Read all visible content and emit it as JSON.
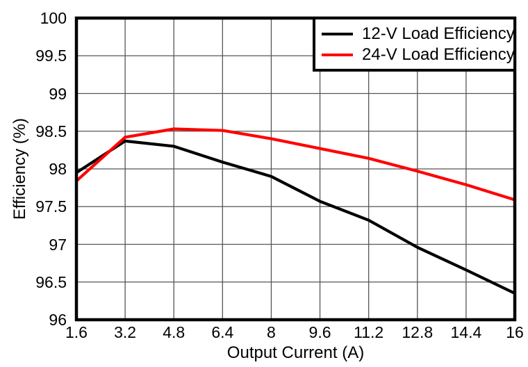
{
  "chart_data": {
    "type": "line",
    "title": "",
    "xlabel": "Output Current (A)",
    "ylabel": "Efficiency (%)",
    "xlim": [
      1.6,
      16
    ],
    "ylim": [
      96,
      100
    ],
    "grid": true,
    "legend_position": "top-right",
    "x_ticks": [
      1.6,
      3.2,
      4.8,
      6.4,
      8,
      9.6,
      11.2,
      12.8,
      14.4,
      16
    ],
    "x_tick_labels": [
      "1.6",
      "3.2",
      "4.8",
      "6.4",
      "8",
      "9.6",
      "11.2",
      "12.8",
      "14.4",
      "16"
    ],
    "y_ticks": [
      96,
      96.5,
      97,
      97.5,
      98,
      98.5,
      99,
      99.5,
      100
    ],
    "y_tick_labels": [
      "96",
      "96.5",
      "97",
      "97.5",
      "98",
      "98.5",
      "99",
      "99.5",
      "100"
    ],
    "x": [
      1.6,
      3.2,
      4.8,
      6.4,
      8,
      9.6,
      11.2,
      12.8,
      14.4,
      16
    ],
    "series": [
      {
        "name": "12-V Load Efficiency",
        "color": "#000000",
        "values": [
          97.95,
          98.37,
          98.3,
          98.09,
          97.9,
          97.57,
          97.32,
          96.96,
          96.66,
          96.35
        ]
      },
      {
        "name": "24-V Load Efficiency",
        "color": "#ff0000",
        "values": [
          97.84,
          98.42,
          98.53,
          98.51,
          98.4,
          98.27,
          98.14,
          97.97,
          97.79,
          97.59
        ]
      }
    ]
  },
  "colors": {
    "frame": "#000000",
    "grid": "#555555",
    "background": "#ffffff"
  }
}
